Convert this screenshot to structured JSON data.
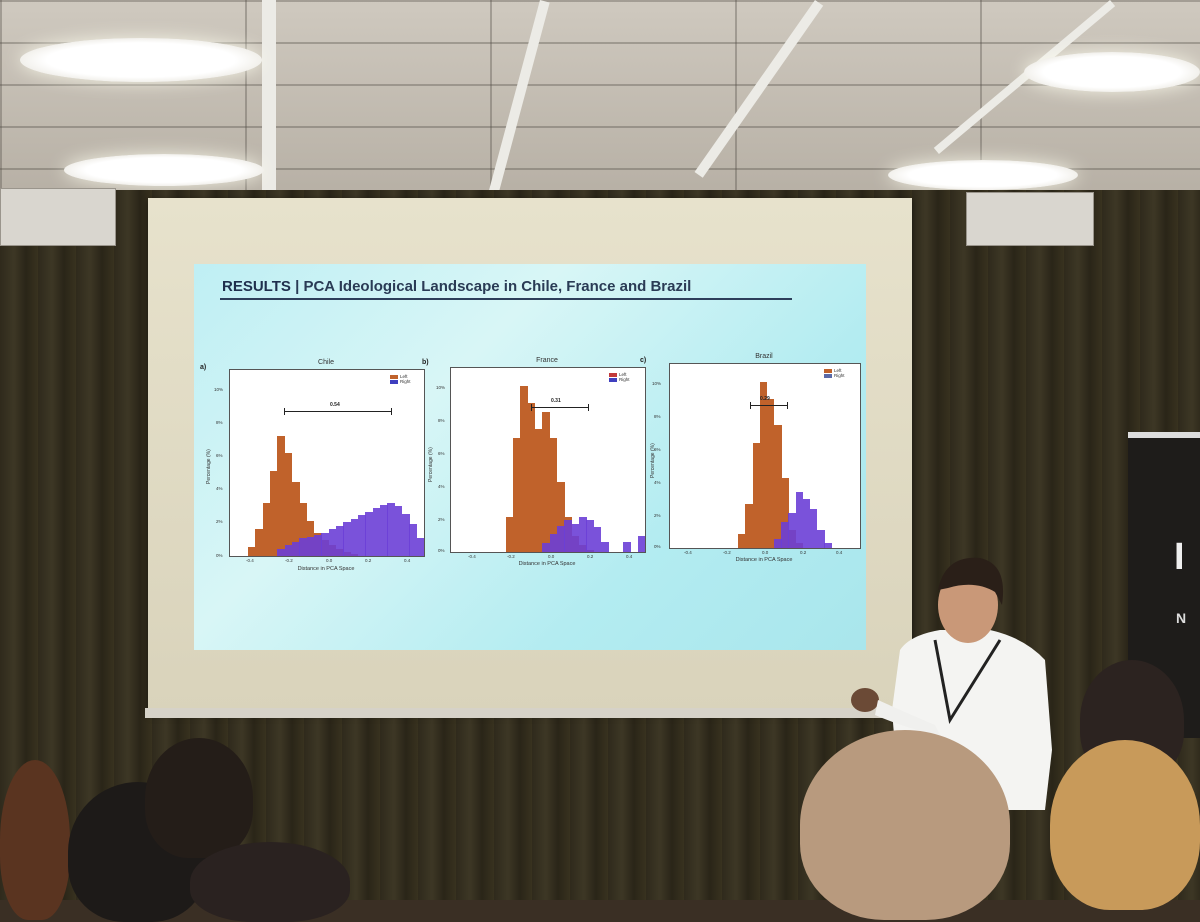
{
  "slide": {
    "title_prefix": "RESULTS",
    "title_separator": "|",
    "title_text": "PCA Ideological Landscape in Chile, France and Brazil"
  },
  "panels": [
    {
      "letter": "a)",
      "title": "Chile",
      "ylabel": "Percentage (%)",
      "xlabel": "Distance in PCA Space",
      "distance": "0.54",
      "legend": [
        "Left",
        "Right"
      ],
      "yticks": [
        "10%",
        "8%",
        "6%",
        "4%",
        "2%",
        "0%"
      ],
      "xticks": [
        "-0.4",
        "-0.2",
        "0.0",
        "0.2",
        "0.4"
      ]
    },
    {
      "letter": "b)",
      "title": "France",
      "ylabel": "Percentage (%)",
      "xlabel": "Distance in PCA Space",
      "distance": "0.31",
      "legend": [
        "Left",
        "Right"
      ],
      "yticks": [
        "10%",
        "8%",
        "6%",
        "4%",
        "2%",
        "0%"
      ],
      "xticks": [
        "-0.4",
        "-0.2",
        "0.0",
        "0.2",
        "0.4"
      ]
    },
    {
      "letter": "c)",
      "title": "Brazil",
      "ylabel": "Percentage (%)",
      "xlabel": "Distance in PCA Space",
      "distance": "0.29",
      "legend": [
        "Left",
        "Right"
      ],
      "yticks": [
        "10%",
        "8%",
        "6%",
        "4%",
        "2%",
        "0%"
      ],
      "xticks": [
        "-0.4",
        "-0.2",
        "0.0",
        "0.2",
        "0.4"
      ]
    }
  ],
  "colors": {
    "left": "#c0622b",
    "right": "#6b3fd6"
  },
  "banner": {
    "big": "I",
    "small": "N"
  },
  "histograms": {
    "chile": {
      "left": [
        0.5,
        1.5,
        3.0,
        4.8,
        6.8,
        5.8,
        4.2,
        3.0,
        2.0,
        1.3,
        0.9,
        0.6,
        0.4,
        0.2,
        0.1,
        0,
        0,
        0,
        0,
        0,
        0,
        0,
        0,
        0
      ],
      "right": [
        0,
        0,
        0,
        0,
        0.4,
        0.6,
        0.8,
        1.0,
        1.1,
        1.2,
        1.3,
        1.5,
        1.7,
        1.9,
        2.1,
        2.3,
        2.5,
        2.7,
        2.9,
        3.0,
        2.8,
        2.4,
        1.8,
        1.0
      ]
    },
    "france": {
      "left": [
        0,
        0,
        0,
        0,
        0,
        2.0,
        6.5,
        9.5,
        8.5,
        7.0,
        8.0,
        6.5,
        4.0,
        2.0,
        0.9,
        0.4,
        0.1,
        0,
        0,
        0,
        0,
        0,
        0,
        0
      ],
      "right": [
        0,
        0,
        0,
        0,
        0,
        0,
        0,
        0,
        0,
        0,
        0.5,
        1.0,
        1.5,
        1.8,
        1.6,
        2.0,
        1.8,
        1.4,
        0.6,
        0,
        0,
        0.6,
        0,
        0.9
      ]
    },
    "brazil": {
      "left": [
        0,
        0,
        0,
        0,
        0,
        0,
        0,
        0.8,
        2.5,
        6.0,
        9.5,
        8.5,
        7.0,
        4.0,
        1.0,
        0.3,
        0,
        0,
        0,
        0,
        0,
        0,
        0,
        0
      ],
      "right": [
        0,
        0,
        0,
        0,
        0,
        0,
        0,
        0,
        0,
        0,
        0,
        0,
        0.5,
        1.5,
        2.0,
        3.2,
        2.8,
        2.2,
        1.0,
        0.3,
        0,
        0,
        0,
        0
      ]
    }
  }
}
